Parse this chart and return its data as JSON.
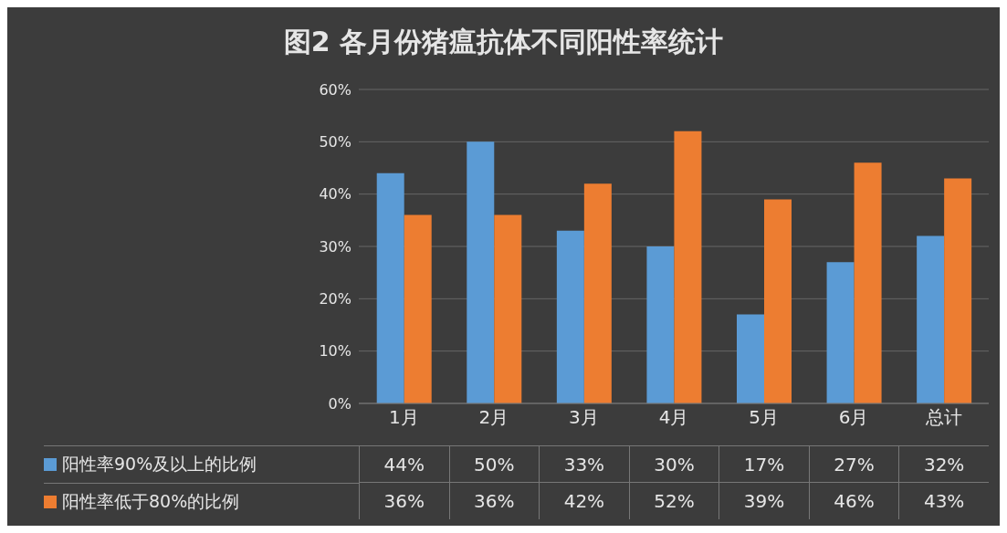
{
  "chart_data": {
    "type": "bar",
    "title": "图2 各月份猪瘟抗体不同阳性率统计",
    "categories": [
      "1月",
      "2月",
      "3月",
      "4月",
      "5月",
      "6月",
      "总计"
    ],
    "series": [
      {
        "name": "阳性率90%及以上的比例",
        "color": "#5b9bd5",
        "values": [
          44,
          50,
          33,
          30,
          17,
          27,
          32
        ],
        "value_labels": [
          "44%",
          "50%",
          "33%",
          "30%",
          "17%",
          "27%",
          "32%"
        ]
      },
      {
        "name": "阳性率低于80%的比例",
        "color": "#ed7d31",
        "values": [
          36,
          36,
          42,
          52,
          39,
          46,
          43
        ],
        "value_labels": [
          "36%",
          "36%",
          "42%",
          "52%",
          "39%",
          "46%",
          "43%"
        ]
      }
    ],
    "ylim": [
      0,
      60
    ],
    "yticks": [
      {
        "value": 0,
        "label": "0%"
      },
      {
        "value": 10,
        "label": "10%"
      },
      {
        "value": 20,
        "label": "20%"
      },
      {
        "value": 30,
        "label": "30%"
      },
      {
        "value": 40,
        "label": "40%"
      },
      {
        "value": 50,
        "label": "50%"
      },
      {
        "value": 60,
        "label": "60%"
      }
    ],
    "grid": "y",
    "legend": "bottom"
  }
}
